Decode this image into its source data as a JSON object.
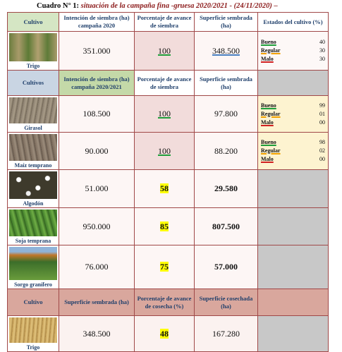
{
  "title": {
    "label": "Cuadro N° 1:",
    "text": "situación de la campaña fina -gruesa 2020/2021 - (24/11/2020) –"
  },
  "sections": [
    {
      "header": [
        "Cultivo",
        "Intención de siembra (ha) campaña 2020",
        "Porcentaje de avance de siembra",
        "Superficie sembrada (ha)",
        "Estados del cultivo (%)"
      ],
      "rows": [
        {
          "crop": "Trigo",
          "values": [
            "351.000",
            "100",
            "348.500"
          ],
          "states": [
            [
              "Bueno",
              "40"
            ],
            [
              "Regular",
              "30"
            ],
            [
              "Malo",
              "30"
            ]
          ]
        }
      ]
    },
    {
      "header": [
        "Cultivos",
        "Intención de siembra (ha) campaña 2020/2021",
        "Porcentaje de avance de siembra",
        "Superficie sembrada (ha)"
      ],
      "rows": [
        {
          "crop": "Girasol",
          "values": [
            "108.500",
            "100",
            "97.800"
          ],
          "states": [
            [
              "Bueno",
              "99"
            ],
            [
              "Regular",
              "01"
            ],
            [
              "Malo",
              "00"
            ]
          ]
        },
        {
          "crop": "Maíz temprano",
          "values": [
            "90.000",
            "100",
            "88.200"
          ],
          "states": [
            [
              "Bueno",
              "98"
            ],
            [
              "Regular",
              "02"
            ],
            [
              "Malo",
              "00"
            ]
          ]
        },
        {
          "crop": "Algodón",
          "values": [
            "51.000",
            "58",
            "29.580"
          ]
        },
        {
          "crop": "Soja temprana",
          "values": [
            "950.000",
            "85",
            "807.500"
          ]
        },
        {
          "crop": "Sorgo granífero",
          "values": [
            "76.000",
            "75",
            "57.000"
          ]
        }
      ]
    },
    {
      "header": [
        "Cultivo",
        "Superficie sembrada (ha)",
        "Porcentaje de avance de cosecha (%)",
        "Superficie cosechada (ha)"
      ],
      "rows": [
        {
          "crop": "Trigo",
          "values": [
            "348.500",
            "48",
            "167.280"
          ]
        }
      ]
    }
  ]
}
